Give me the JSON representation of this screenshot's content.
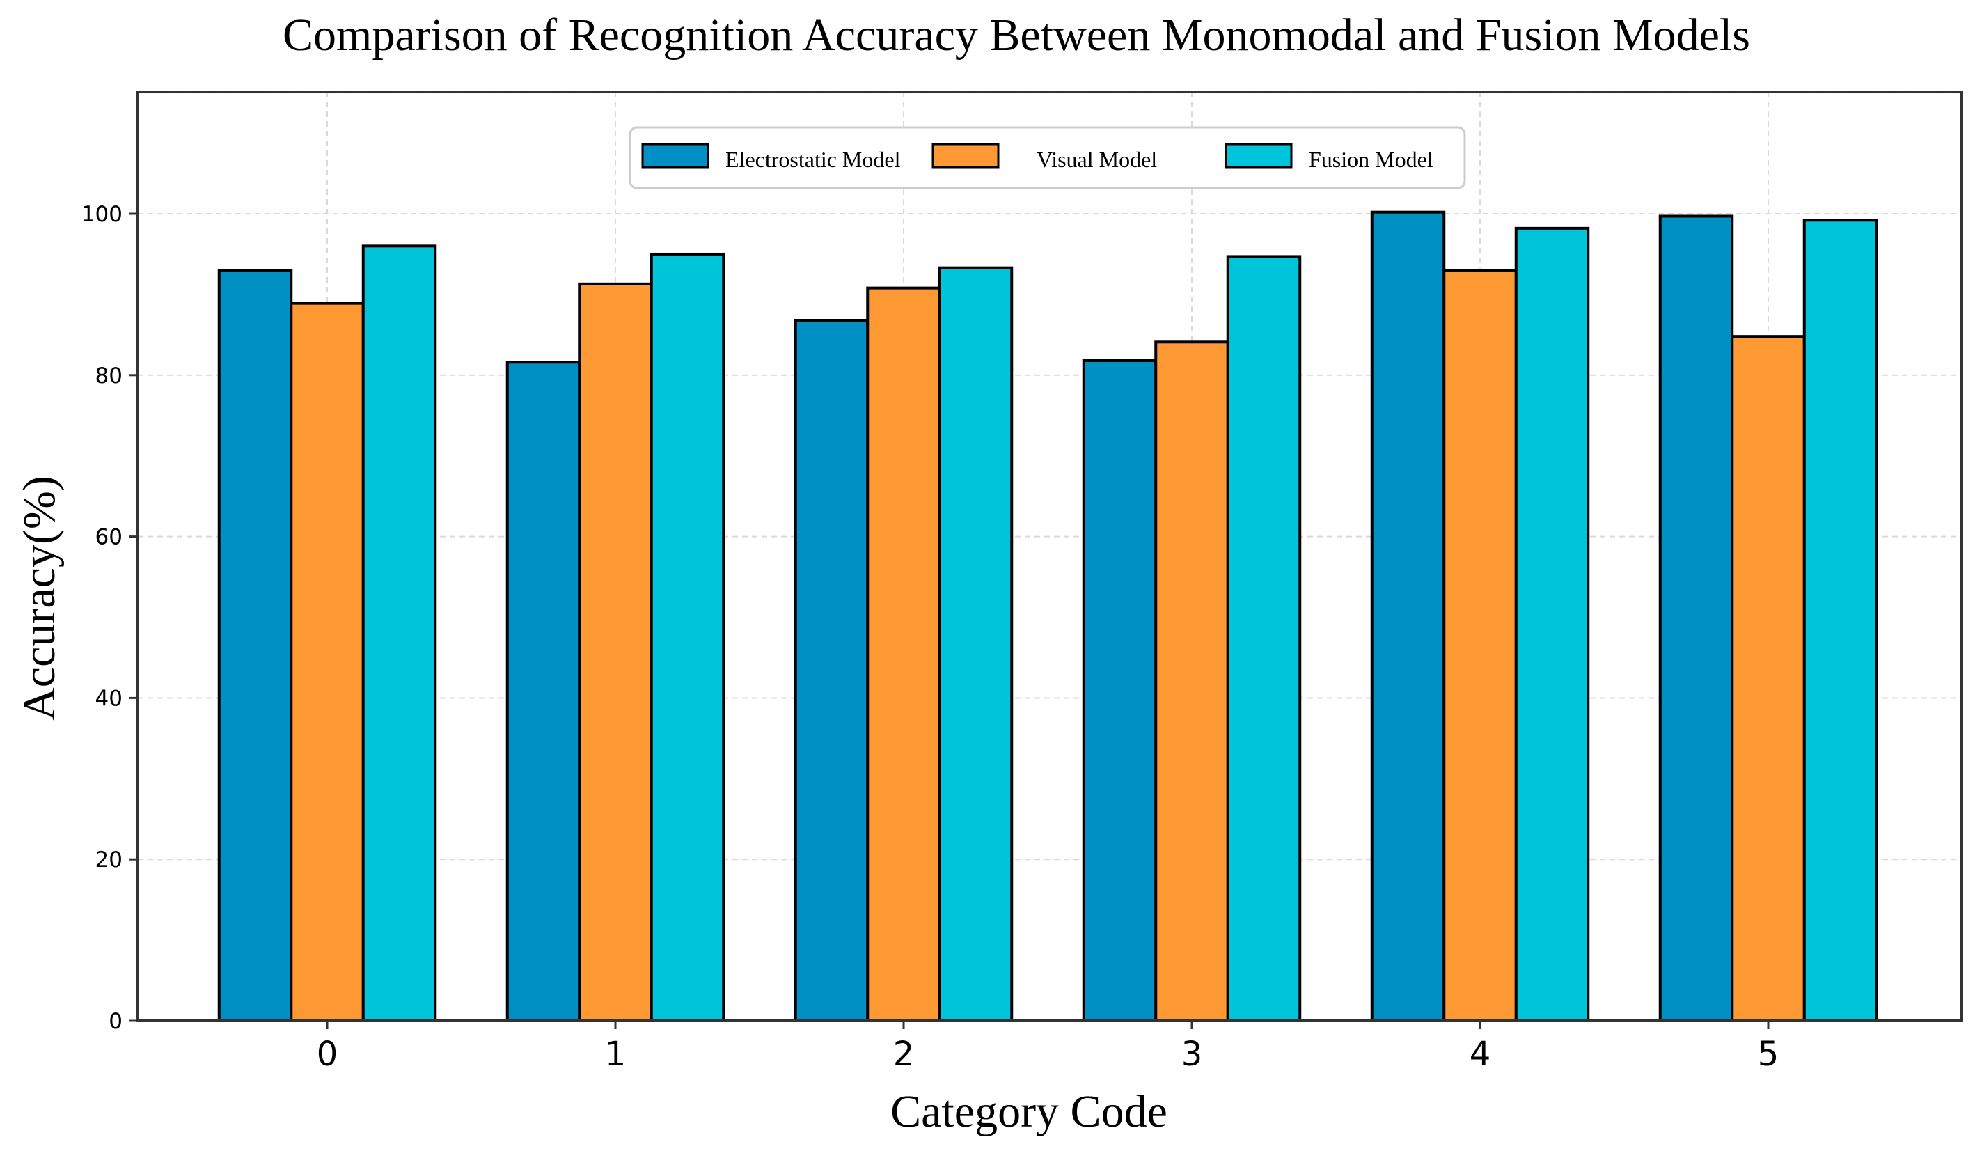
{
  "chart_data": {
    "type": "bar",
    "title": "Comparison of Recognition Accuracy Between Monomodal and Fusion Models",
    "xlabel": "Category Code",
    "ylabel": "Accuracy(%)",
    "categories": [
      "0",
      "1",
      "2",
      "3",
      "4",
      "5"
    ],
    "ylim": [
      0,
      115
    ],
    "yticks": [
      0,
      20,
      40,
      60,
      80,
      100
    ],
    "grid": true,
    "legend_position": "top-center",
    "series": [
      {
        "name": "Electrostatic Model",
        "color": "#0090c4",
        "values": [
          93.0,
          81.6,
          86.8,
          81.8,
          100.2,
          99.7
        ]
      },
      {
        "name": "Visual Model",
        "color": "#ff9933",
        "values": [
          88.9,
          91.3,
          90.8,
          84.1,
          93.0,
          84.8
        ]
      },
      {
        "name": "Fusion Model",
        "color": "#00c4da",
        "values": [
          96.0,
          95.0,
          93.3,
          94.7,
          98.2,
          99.2
        ]
      }
    ]
  }
}
